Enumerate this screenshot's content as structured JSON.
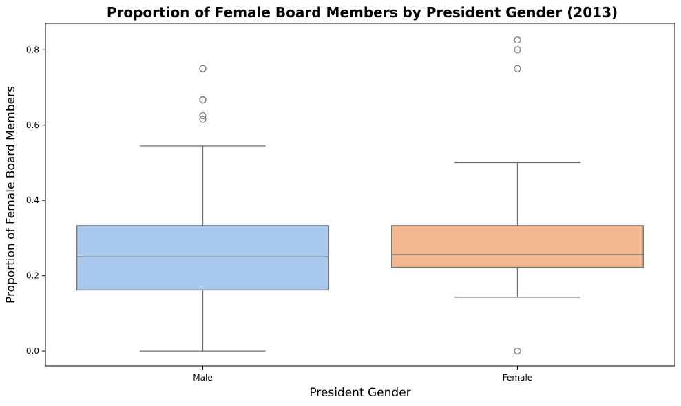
{
  "chart_data": {
    "type": "box",
    "title": "Proportion of Female Board Members by President Gender (2013)",
    "xlabel": "President Gender",
    "ylabel": "Proportion of Female Board Members",
    "ylim": [
      -0.04,
      0.87
    ],
    "yticks": [
      0.0,
      0.2,
      0.4,
      0.6,
      0.8
    ],
    "ytick_labels": [
      "0.0",
      "0.2",
      "0.4",
      "0.6",
      "0.8"
    ],
    "grid": false,
    "categories": [
      "Male",
      "Female"
    ],
    "boxes": [
      {
        "category": "Male",
        "color": "#a9c8ed",
        "whisker_low": 0.0,
        "q1": 0.162,
        "median": 0.25,
        "q3": 0.333,
        "whisker_high": 0.545,
        "outliers": [
          0.75,
          0.75,
          0.667,
          0.667,
          0.625,
          0.615
        ]
      },
      {
        "category": "Female",
        "color": "#f2b790",
        "whisker_low": 0.143,
        "q1": 0.222,
        "median": 0.256,
        "q3": 0.333,
        "whisker_high": 0.5,
        "outliers": [
          0.826,
          0.8,
          0.75,
          0.0
        ]
      }
    ],
    "line_color": "#6e6e6e"
  }
}
